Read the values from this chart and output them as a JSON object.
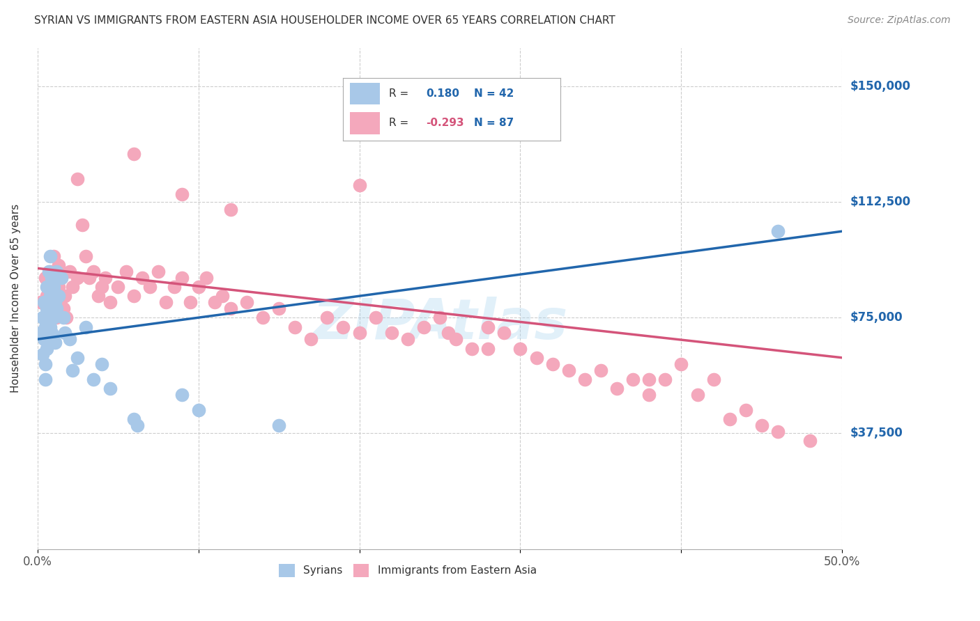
{
  "title": "SYRIAN VS IMMIGRANTS FROM EASTERN ASIA HOUSEHOLDER INCOME OVER 65 YEARS CORRELATION CHART",
  "source": "Source: ZipAtlas.com",
  "ylabel": "Householder Income Over 65 years",
  "xlabel_ticks": [
    "0.0%",
    "",
    "",
    "",
    "",
    "50.0%"
  ],
  "xlabel_vals": [
    0.0,
    0.1,
    0.2,
    0.3,
    0.4,
    0.5
  ],
  "ylabel_ticks": [
    "$37,500",
    "$75,000",
    "$112,500",
    "$150,000"
  ],
  "ylabel_vals": [
    37500,
    75000,
    112500,
    150000
  ],
  "ylim": [
    0,
    162500
  ],
  "xlim": [
    0.0,
    0.5
  ],
  "blue_R": 0.18,
  "blue_N": 42,
  "pink_R": -0.293,
  "pink_N": 87,
  "blue_color": "#a8c8e8",
  "pink_color": "#f4a8bc",
  "blue_line_color": "#2166ac",
  "pink_line_color": "#d4547a",
  "watermark": "ZIPAtlas",
  "background_color": "#ffffff",
  "grid_color": "#cccccc",
  "blue_x": [
    0.002,
    0.003,
    0.003,
    0.004,
    0.004,
    0.005,
    0.005,
    0.005,
    0.006,
    0.006,
    0.006,
    0.007,
    0.007,
    0.007,
    0.008,
    0.008,
    0.008,
    0.009,
    0.009,
    0.01,
    0.01,
    0.011,
    0.011,
    0.012,
    0.012,
    0.013,
    0.015,
    0.016,
    0.017,
    0.02,
    0.022,
    0.025,
    0.03,
    0.035,
    0.04,
    0.045,
    0.06,
    0.062,
    0.09,
    0.1,
    0.15,
    0.46
  ],
  "blue_y": [
    70000,
    63000,
    75000,
    68000,
    80000,
    72000,
    60000,
    55000,
    78000,
    85000,
    65000,
    90000,
    73000,
    68000,
    95000,
    82000,
    72000,
    88000,
    70000,
    85000,
    75000,
    80000,
    67000,
    90000,
    78000,
    82000,
    88000,
    75000,
    70000,
    68000,
    58000,
    62000,
    72000,
    55000,
    60000,
    52000,
    42000,
    40000,
    50000,
    45000,
    40000,
    103000
  ],
  "pink_x": [
    0.002,
    0.004,
    0.005,
    0.006,
    0.007,
    0.008,
    0.009,
    0.01,
    0.01,
    0.011,
    0.012,
    0.013,
    0.013,
    0.014,
    0.015,
    0.016,
    0.017,
    0.018,
    0.02,
    0.022,
    0.025,
    0.028,
    0.03,
    0.032,
    0.035,
    0.038,
    0.04,
    0.042,
    0.045,
    0.05,
    0.055,
    0.06,
    0.065,
    0.07,
    0.075,
    0.08,
    0.085,
    0.09,
    0.095,
    0.1,
    0.105,
    0.11,
    0.115,
    0.12,
    0.13,
    0.14,
    0.15,
    0.16,
    0.17,
    0.18,
    0.19,
    0.2,
    0.21,
    0.22,
    0.23,
    0.24,
    0.25,
    0.255,
    0.26,
    0.27,
    0.28,
    0.29,
    0.3,
    0.31,
    0.32,
    0.33,
    0.34,
    0.35,
    0.36,
    0.37,
    0.38,
    0.39,
    0.4,
    0.41,
    0.42,
    0.43,
    0.44,
    0.45,
    0.46,
    0.48,
    0.025,
    0.06,
    0.09,
    0.12,
    0.2,
    0.28,
    0.38
  ],
  "pink_y": [
    80000,
    75000,
    88000,
    82000,
    78000,
    90000,
    85000,
    80000,
    95000,
    88000,
    75000,
    85000,
    92000,
    80000,
    88000,
    78000,
    82000,
    75000,
    90000,
    85000,
    88000,
    105000,
    95000,
    88000,
    90000,
    82000,
    85000,
    88000,
    80000,
    85000,
    90000,
    82000,
    88000,
    85000,
    90000,
    80000,
    85000,
    88000,
    80000,
    85000,
    88000,
    80000,
    82000,
    78000,
    80000,
    75000,
    78000,
    72000,
    68000,
    75000,
    72000,
    70000,
    75000,
    70000,
    68000,
    72000,
    75000,
    70000,
    68000,
    65000,
    72000,
    70000,
    65000,
    62000,
    60000,
    58000,
    55000,
    58000,
    52000,
    55000,
    50000,
    55000,
    60000,
    50000,
    55000,
    42000,
    45000,
    40000,
    38000,
    35000,
    120000,
    128000,
    115000,
    110000,
    118000,
    65000,
    55000
  ]
}
